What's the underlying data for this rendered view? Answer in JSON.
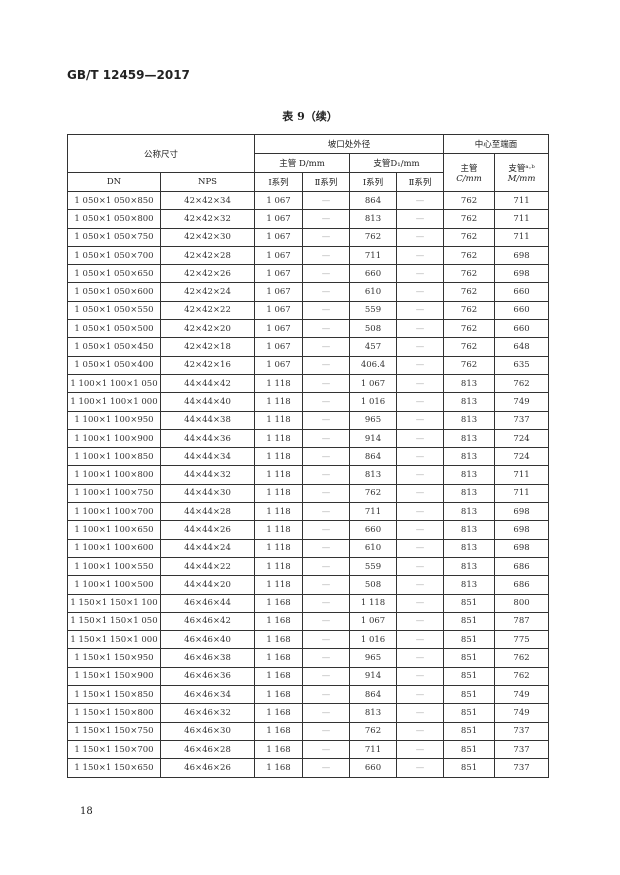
{
  "header": {
    "standard_no": "GB/T 12459—2017"
  },
  "table": {
    "title": "表 9（续）",
    "headers": {
      "nominal_size": "公称尺寸",
      "bevel_od": "坡口处外径",
      "center_to_end": "中心至端面",
      "run_D": "主管 D/mm",
      "branch_D1": "支管D₁/mm",
      "run_C_1": "主管",
      "run_C_2": "C/mm",
      "branch_M_1": "支管ᵃ·ᵇ",
      "branch_M_2": "M/mm",
      "dn": "DN",
      "nps": "NPS",
      "series1": "Ⅰ系列",
      "series2": "Ⅱ系列",
      "series1b": "Ⅰ系列",
      "series2b": "Ⅱ系列"
    },
    "rows": [
      [
        "1 050×1 050×850",
        "42×42×34",
        "1 067",
        "—",
        "864",
        "—",
        "762",
        "711"
      ],
      [
        "1 050×1 050×800",
        "42×42×32",
        "1 067",
        "—",
        "813",
        "—",
        "762",
        "711"
      ],
      [
        "1 050×1 050×750",
        "42×42×30",
        "1 067",
        "—",
        "762",
        "—",
        "762",
        "711"
      ],
      [
        "1 050×1 050×700",
        "42×42×28",
        "1 067",
        "—",
        "711",
        "—",
        "762",
        "698"
      ],
      [
        "1 050×1 050×650",
        "42×42×26",
        "1 067",
        "—",
        "660",
        "—",
        "762",
        "698"
      ],
      [
        "1 050×1 050×600",
        "42×42×24",
        "1 067",
        "—",
        "610",
        "—",
        "762",
        "660"
      ],
      [
        "1 050×1 050×550",
        "42×42×22",
        "1 067",
        "—",
        "559",
        "—",
        "762",
        "660"
      ],
      [
        "1 050×1 050×500",
        "42×42×20",
        "1 067",
        "—",
        "508",
        "—",
        "762",
        "660"
      ],
      [
        "1 050×1 050×450",
        "42×42×18",
        "1 067",
        "—",
        "457",
        "—",
        "762",
        "648"
      ],
      [
        "1 050×1 050×400",
        "42×42×16",
        "1 067",
        "—",
        "406.4",
        "—",
        "762",
        "635"
      ],
      [
        "1 100×1 100×1 050",
        "44×44×42",
        "1 118",
        "—",
        "1 067",
        "—",
        "813",
        "762"
      ],
      [
        "1 100×1 100×1 000",
        "44×44×40",
        "1 118",
        "—",
        "1 016",
        "—",
        "813",
        "749"
      ],
      [
        "1 100×1 100×950",
        "44×44×38",
        "1 118",
        "—",
        "965",
        "—",
        "813",
        "737"
      ],
      [
        "1 100×1 100×900",
        "44×44×36",
        "1 118",
        "—",
        "914",
        "—",
        "813",
        "724"
      ],
      [
        "1 100×1 100×850",
        "44×44×34",
        "1 118",
        "—",
        "864",
        "—",
        "813",
        "724"
      ],
      [
        "1 100×1 100×800",
        "44×44×32",
        "1 118",
        "—",
        "813",
        "—",
        "813",
        "711"
      ],
      [
        "1 100×1 100×750",
        "44×44×30",
        "1 118",
        "—",
        "762",
        "—",
        "813",
        "711"
      ],
      [
        "1 100×1 100×700",
        "44×44×28",
        "1 118",
        "—",
        "711",
        "—",
        "813",
        "698"
      ],
      [
        "1 100×1 100×650",
        "44×44×26",
        "1 118",
        "—",
        "660",
        "—",
        "813",
        "698"
      ],
      [
        "1 100×1 100×600",
        "44×44×24",
        "1 118",
        "—",
        "610",
        "—",
        "813",
        "698"
      ],
      [
        "1 100×1 100×550",
        "44×44×22",
        "1 118",
        "—",
        "559",
        "—",
        "813",
        "686"
      ],
      [
        "1 100×1 100×500",
        "44×44×20",
        "1 118",
        "—",
        "508",
        "—",
        "813",
        "686"
      ],
      [
        "1 150×1 150×1 100",
        "46×46×44",
        "1 168",
        "—",
        "1 118",
        "—",
        "851",
        "800"
      ],
      [
        "1 150×1 150×1 050",
        "46×46×42",
        "1 168",
        "—",
        "1 067",
        "—",
        "851",
        "787"
      ],
      [
        "1 150×1 150×1 000",
        "46×46×40",
        "1 168",
        "—",
        "1 016",
        "—",
        "851",
        "775"
      ],
      [
        "1 150×1 150×950",
        "46×46×38",
        "1 168",
        "—",
        "965",
        "—",
        "851",
        "762"
      ],
      [
        "1 150×1 150×900",
        "46×46×36",
        "1 168",
        "—",
        "914",
        "—",
        "851",
        "762"
      ],
      [
        "1 150×1 150×850",
        "46×46×34",
        "1 168",
        "—",
        "864",
        "—",
        "851",
        "749"
      ],
      [
        "1 150×1 150×800",
        "46×46×32",
        "1 168",
        "—",
        "813",
        "—",
        "851",
        "749"
      ],
      [
        "1 150×1 150×750",
        "46×46×30",
        "1 168",
        "—",
        "762",
        "—",
        "851",
        "737"
      ],
      [
        "1 150×1 150×700",
        "46×46×28",
        "1 168",
        "—",
        "711",
        "—",
        "851",
        "737"
      ],
      [
        "1 150×1 150×650",
        "46×46×26",
        "1 168",
        "—",
        "660",
        "—",
        "851",
        "737"
      ]
    ]
  },
  "footer": {
    "page_number": "18"
  }
}
